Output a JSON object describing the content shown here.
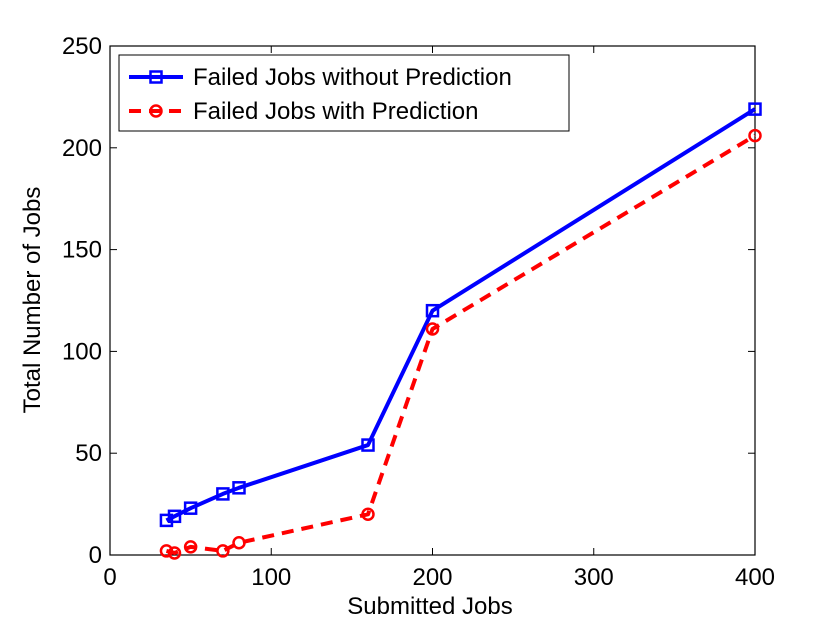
{
  "chart_data": {
    "type": "line",
    "xlabel": "Submitted Jobs",
    "ylabel": "Total Number of Jobs",
    "xlim": [
      0,
      400
    ],
    "ylim": [
      0,
      250
    ],
    "x_ticks": [
      0,
      100,
      200,
      300,
      400
    ],
    "y_ticks": [
      0,
      50,
      100,
      150,
      200,
      250
    ],
    "grid": false,
    "legend_position": "top-left",
    "series": [
      {
        "name": "Failed Jobs without Prediction",
        "color": "#0000ff",
        "line_style": "solid",
        "marker": "square",
        "x": [
          35,
          40,
          50,
          70,
          80,
          160,
          200,
          400
        ],
        "y": [
          17,
          19,
          23,
          30,
          33,
          54,
          120,
          219
        ]
      },
      {
        "name": "Failed Jobs with Prediction",
        "color": "#ff0000",
        "line_style": "dashed",
        "marker": "circle",
        "x": [
          35,
          40,
          50,
          70,
          80,
          160,
          200,
          400
        ],
        "y": [
          2,
          1,
          4,
          2,
          6,
          20,
          111,
          206
        ]
      }
    ]
  }
}
